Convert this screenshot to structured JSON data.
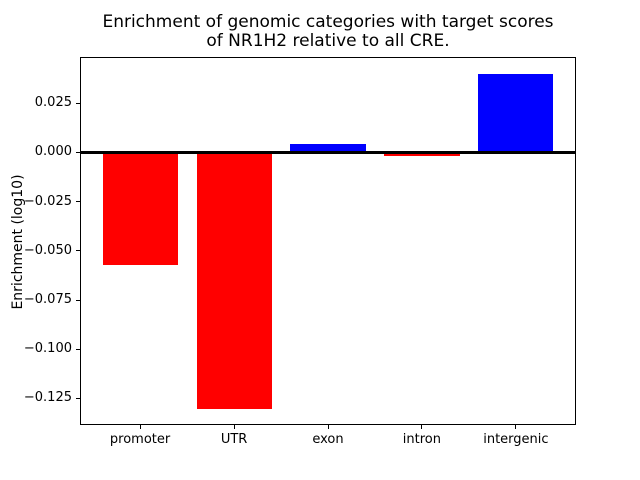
{
  "window": {
    "background": "#ffffff"
  },
  "chart_data": {
    "type": "bar",
    "title": "Enrichment of genomic categories with target scores of NR1H2 relative to all CRE.",
    "title_lines": [
      "Enrichment of genomic categories with target scores",
      "of NR1H2 relative to all CRE."
    ],
    "xlabel": "",
    "ylabel": "Enrichment (log10)",
    "categories": [
      "promoter",
      "UTR",
      "exon",
      "intron",
      "intergenic"
    ],
    "values": [
      -0.057,
      -0.1305,
      0.0045,
      -0.002,
      0.04
    ],
    "bar_colors": [
      "#ff0000",
      "#ff0000",
      "#0000ff",
      "#ff0000",
      "#0000ff"
    ],
    "positive_color": "#0000ff",
    "negative_color": "#ff0000",
    "ylim": [
      -0.1385,
      0.0485
    ],
    "yticks": [
      0.025,
      0,
      -0.025,
      -0.05,
      -0.075,
      -0.1,
      -0.125
    ],
    "ytick_labels": [
      "0.025",
      "0.000",
      "−0.025",
      "−0.050",
      "−0.075",
      "−0.100",
      "−0.125"
    ],
    "grid": false,
    "legend": false,
    "zero_line": true,
    "zero_line_color": "#000000",
    "axis_color": "#000000",
    "text_color": "#000000"
  }
}
